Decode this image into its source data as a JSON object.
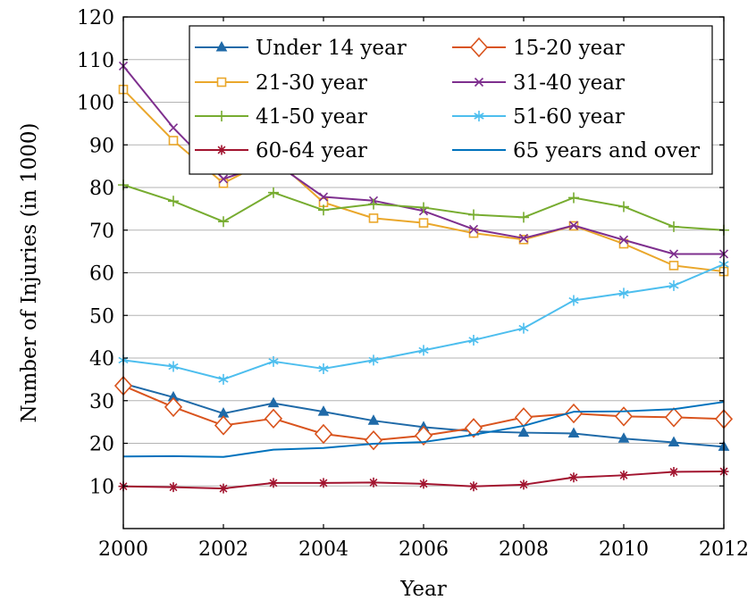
{
  "chart_data": {
    "type": "line",
    "title": "",
    "xlabel": "Year",
    "ylabel": "Number of Injuries (in 1000)",
    "xlim": [
      2000,
      2012
    ],
    "ylim": [
      0,
      120
    ],
    "xticks": [
      2000,
      2002,
      2004,
      2006,
      2008,
      2010,
      2012
    ],
    "yticks": [
      10,
      20,
      30,
      40,
      50,
      60,
      70,
      80,
      90,
      100,
      110,
      120
    ],
    "grid": "horizontal",
    "legend_position": "top-right",
    "legend_columns": 2,
    "x": [
      2000,
      2001,
      2002,
      2003,
      2004,
      2005,
      2006,
      2007,
      2008,
      2009,
      2010,
      2011,
      2012
    ],
    "series": [
      {
        "name": "Under 14 year",
        "color": "#1f6aa8",
        "marker": "triangle",
        "values": [
          34,
          30.8,
          27,
          29.4,
          27.4,
          25.3,
          23.8,
          22.8,
          22.5,
          22.3,
          21.1,
          20.2,
          19.2
        ]
      },
      {
        "name": "15-20 year",
        "color": "#d9541e",
        "marker": "diamond",
        "values": [
          33.5,
          28.5,
          24.2,
          25.8,
          22.2,
          20.7,
          21.8,
          23.6,
          26.1,
          27,
          26.3,
          26.1,
          25.7
        ]
      },
      {
        "name": "21-30 year",
        "color": "#eaa72b",
        "marker": "square",
        "values": [
          103,
          91,
          81,
          87,
          76.5,
          72.8,
          71.7,
          69.3,
          67.8,
          71,
          66.8,
          61.7,
          60.3
        ]
      },
      {
        "name": "31-40 year",
        "color": "#7e2f8e",
        "marker": "x",
        "values": [
          108.5,
          94,
          82,
          86,
          77.8,
          76.9,
          74.5,
          70.2,
          68.1,
          71.1,
          67.7,
          64.4,
          64.4
        ]
      },
      {
        "name": "41-50 year",
        "color": "#77ac30",
        "marker": "plus",
        "values": [
          80.6,
          76.8,
          72,
          78.8,
          74.7,
          76.1,
          75.3,
          73.6,
          73,
          77.6,
          75.5,
          70.8,
          70
        ]
      },
      {
        "name": "51-60 year",
        "color": "#4dbeee",
        "marker": "asterisk",
        "values": [
          39.5,
          38,
          35,
          39.2,
          37.5,
          39.5,
          41.8,
          44.2,
          47,
          53.5,
          55.2,
          57,
          62
        ]
      },
      {
        "name": "60-64 year",
        "color": "#a2142f",
        "marker": "star",
        "values": [
          9.9,
          9.7,
          9.4,
          10.7,
          10.7,
          10.8,
          10.5,
          9.9,
          10.3,
          12,
          12.5,
          13.3,
          13.4
        ]
      },
      {
        "name": "65 years and over",
        "color": "#0072bd",
        "marker": "none",
        "values": [
          16.9,
          17,
          16.8,
          18.5,
          18.9,
          19.9,
          20.3,
          22,
          24.1,
          27.4,
          27.5,
          28,
          29.7
        ]
      }
    ]
  }
}
